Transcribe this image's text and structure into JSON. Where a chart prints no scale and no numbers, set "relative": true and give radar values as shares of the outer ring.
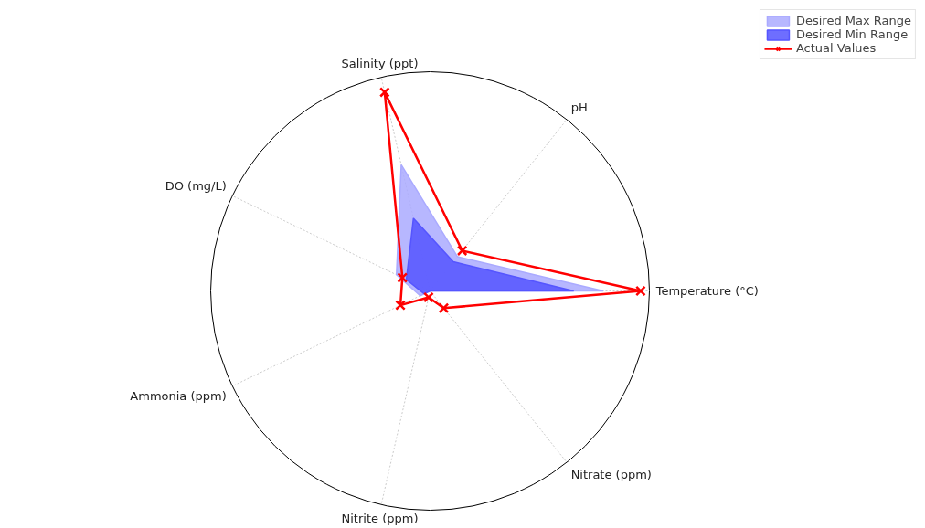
{
  "chart_data": {
    "type": "radar",
    "relative": true,
    "grid": true,
    "legend": "top right",
    "categories": [
      "Salinity (ppt)",
      "pH",
      "Temperature (°C)",
      "Nitrate (ppm)",
      "Nitrite (ppm)",
      "Ammonia (ppm)",
      "DO (mg/L)"
    ],
    "series": [
      {
        "name": "Desired Max Range",
        "type": "area",
        "color": "#aaaaff",
        "values": [
          0.59,
          0.2,
          0.79,
          0.0,
          0.0,
          0.05,
          0.17
        ]
      },
      {
        "name": "Desired Min Range",
        "type": "area",
        "color": "#5555ff",
        "values": [
          0.34,
          0.17,
          0.655,
          0.0,
          0.0,
          0.03,
          0.12
        ]
      },
      {
        "name": "Actual Values",
        "type": "radar",
        "color": "#ff0000",
        "marker": "cross",
        "line_style": "solid",
        "values": [
          0.93,
          0.235,
          0.96,
          0.1,
          0.03,
          0.15,
          0.14
        ]
      }
    ]
  }
}
